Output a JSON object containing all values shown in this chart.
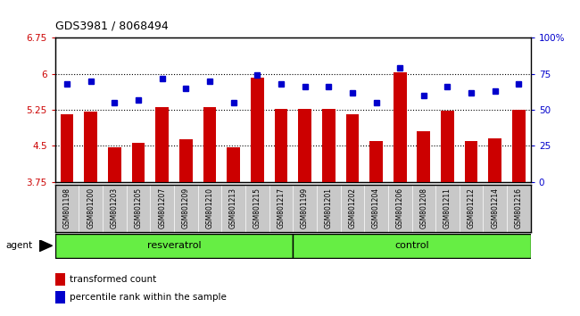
{
  "title": "GDS3981 / 8068494",
  "samples": [
    "GSM801198",
    "GSM801200",
    "GSM801203",
    "GSM801205",
    "GSM801207",
    "GSM801209",
    "GSM801210",
    "GSM801213",
    "GSM801215",
    "GSM801217",
    "GSM801199",
    "GSM801201",
    "GSM801202",
    "GSM801204",
    "GSM801206",
    "GSM801208",
    "GSM801211",
    "GSM801212",
    "GSM801214",
    "GSM801216"
  ],
  "transformed_counts": [
    5.15,
    5.22,
    4.47,
    4.57,
    5.3,
    4.63,
    5.3,
    4.47,
    5.92,
    5.27,
    5.26,
    5.26,
    5.15,
    4.6,
    6.03,
    4.8,
    5.24,
    4.6,
    4.66,
    5.25
  ],
  "percentile_ranks": [
    68,
    70,
    55,
    57,
    72,
    65,
    70,
    55,
    74,
    68,
    66,
    66,
    62,
    55,
    79,
    60,
    66,
    62,
    63,
    68
  ],
  "resveratrol_count": 10,
  "control_count": 10,
  "ylim_left": [
    3.75,
    6.75
  ],
  "ylim_right": [
    0,
    100
  ],
  "yticks_left": [
    3.75,
    4.5,
    5.25,
    6.0,
    6.75
  ],
  "yticks_right": [
    0,
    25,
    50,
    75,
    100
  ],
  "ytick_labels_left": [
    "3.75",
    "4.5",
    "5.25",
    "6",
    "6.75"
  ],
  "ytick_labels_right": [
    "0",
    "25",
    "50",
    "75",
    "100%"
  ],
  "hlines": [
    4.5,
    5.25,
    6.0
  ],
  "bar_color": "#cc0000",
  "dot_color": "#0000cc",
  "bar_width": 0.55,
  "resveratrol_label": "resveratrol",
  "control_label": "control",
  "agent_label": "agent",
  "legend_bar_label": "transformed count",
  "legend_dot_label": "percentile rank within the sample",
  "group_bg_color": "#66ee44",
  "tick_area_bg": "#c8c8c8",
  "plot_bg": "#ffffff"
}
